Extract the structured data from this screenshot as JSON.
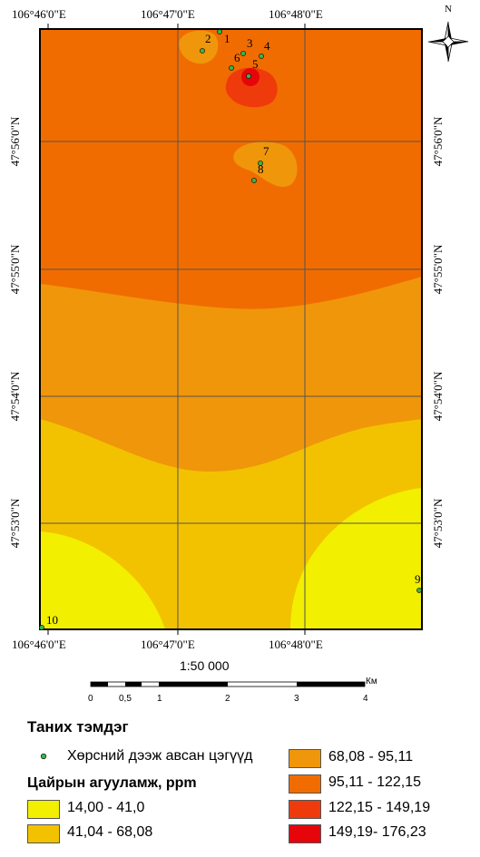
{
  "map": {
    "top_ticks": [
      "106°46'0\"E",
      "106°47'0\"E",
      "106°48'0\"E"
    ],
    "bottom_ticks": [
      "106°46'0\"E",
      "106°47'0\"E",
      "106°48'0\"E"
    ],
    "lat_ticks": [
      "47°56'0\"N",
      "47°55'0\"N",
      "47°54'0\"N",
      "47°53'0\"N"
    ],
    "north_label": "N",
    "sample_points": [
      "1",
      "2",
      "3",
      "4",
      "5",
      "6",
      "7",
      "8",
      "9",
      "10"
    ],
    "colors": {
      "c1": "#f2ef00",
      "c2": "#f2c200",
      "c3": "#f0960b",
      "c4": "#f16c00",
      "c5": "#ef3b0c",
      "c6": "#e6050a",
      "point": "#39b54a"
    }
  },
  "scale": {
    "ratio": "1:50 000",
    "unit": "Км",
    "labels": [
      "0",
      "0,5",
      "1",
      "2",
      "3",
      "4"
    ]
  },
  "legend": {
    "title": "Таних тэмдэг",
    "points_label": "Хөрсний дээж авсан цэгүүд",
    "conc_title": "Цайрын агууламж, ppm",
    "classes": [
      "14,00 - 41,0",
      "41,04 - 68,08",
      "68,08 - 95,11",
      "95,11 - 122,15",
      "122,15 - 149,19",
      "149,19- 176,23"
    ]
  }
}
